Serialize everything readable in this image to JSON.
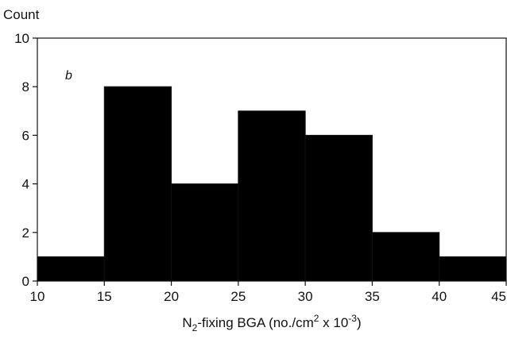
{
  "chart_data": {
    "type": "bar",
    "panel_label": "b",
    "ylabel": "Count",
    "xlabel_parts": {
      "pre": "N",
      "sub": "2",
      "mid": "-fixing BGA (no./cm",
      "sup1": "2",
      "mid2": " x 10",
      "sup2": "-3",
      "post": ")"
    },
    "xlim": [
      10,
      45
    ],
    "ylim": [
      0,
      10
    ],
    "x_ticks": [
      10,
      15,
      20,
      25,
      30,
      35,
      40,
      45
    ],
    "y_ticks": [
      0,
      2,
      4,
      6,
      8,
      10
    ],
    "bins": [
      {
        "x0": 10,
        "x1": 15,
        "count": 1
      },
      {
        "x0": 15,
        "x1": 20,
        "count": 8
      },
      {
        "x0": 20,
        "x1": 25,
        "count": 4
      },
      {
        "x0": 25,
        "x1": 30,
        "count": 7
      },
      {
        "x0": 30,
        "x1": 35,
        "count": 6
      },
      {
        "x0": 35,
        "x1": 40,
        "count": 2
      },
      {
        "x0": 40,
        "x1": 45,
        "count": 1
      }
    ],
    "bar_color": "#000000",
    "grid": false,
    "legend": "none"
  }
}
